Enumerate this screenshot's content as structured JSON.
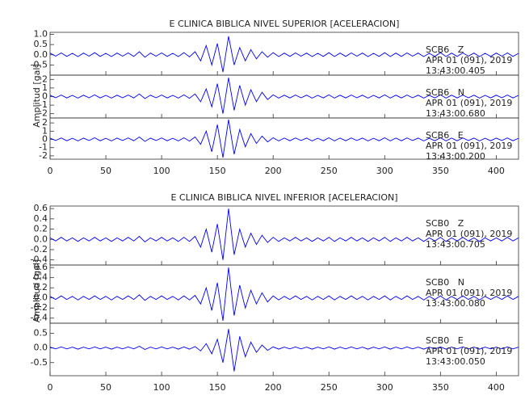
{
  "chart_data": [
    {
      "type": "line",
      "title": "E CLINICA BIBLICA NIVEL SUPERIOR [ACELERACION]",
      "ylabel": "Amplitud [gal]",
      "xlim": [
        0,
        420
      ],
      "xticks": [
        0,
        50,
        100,
        150,
        200,
        250,
        300,
        350,
        400
      ],
      "x": [
        0,
        5,
        10,
        15,
        20,
        25,
        30,
        35,
        40,
        45,
        50,
        55,
        60,
        65,
        70,
        75,
        80,
        85,
        90,
        95,
        100,
        105,
        110,
        115,
        120,
        125,
        130,
        135,
        140,
        145,
        150,
        155,
        160,
        165,
        170,
        175,
        180,
        185,
        190,
        195,
        200,
        205,
        210,
        215,
        220,
        225,
        230,
        235,
        240,
        245,
        250,
        255,
        260,
        265,
        270,
        275,
        280,
        285,
        290,
        295,
        300,
        305,
        310,
        315,
        320,
        325,
        330,
        335,
        340,
        345,
        350,
        355,
        360,
        365,
        370,
        375,
        380,
        385,
        390,
        395,
        400,
        405,
        410,
        415,
        420
      ],
      "panels": [
        {
          "label": "SCB6   Z",
          "date": "APR 01 (091), 2019",
          "time": "13:43:00.405",
          "ylim": [
            -1,
            1.1
          ],
          "yticks": [
            {
              "value": 1,
              "label": "1.0"
            },
            0.5,
            {
              "value": 0,
              "label": "0.0"
            },
            -0.5
          ],
          "series": [
            {
              "color": "#0000ff",
              "values": [
                0.08,
                -0.07,
                0.09,
                -0.08,
                0.07,
                -0.09,
                0.08,
                -0.07,
                0.1,
                -0.08,
                0.07,
                -0.09,
                0.08,
                -0.07,
                0.09,
                -0.08,
                0.15,
                -0.12,
                0.08,
                -0.07,
                0.09,
                -0.08,
                0.07,
                -0.09,
                0.1,
                -0.1,
                0.15,
                -0.3,
                0.45,
                -0.5,
                0.55,
                -0.85,
                0.9,
                -0.5,
                0.35,
                -0.3,
                0.25,
                -0.2,
                0.15,
                -0.12,
                0.1,
                -0.09,
                0.08,
                -0.08,
                0.09,
                -0.07,
                0.08,
                -0.09,
                0.07,
                -0.08,
                0.1,
                -0.09,
                0.08,
                -0.08,
                0.09,
                -0.07,
                0.08,
                -0.09,
                0.07,
                -0.08,
                0.1,
                -0.09,
                0.08,
                -0.08,
                0.09,
                -0.07,
                0.08,
                -0.09,
                0.07,
                -0.08,
                0.1,
                -0.09,
                0.08,
                -0.08,
                0.09,
                -0.07,
                0.08,
                -0.09,
                0.07,
                -0.08,
                0.08,
                -0.07,
                0.09,
                -0.08,
                0.07
              ]
            }
          ]
        },
        {
          "label": "SCB6   N",
          "date": "APR 01 (091), 2019",
          "time": "13:43:00.680",
          "ylim": [
            -2.5,
            2.5
          ],
          "yticks": [
            2,
            1,
            0,
            -1,
            -2
          ],
          "series": [
            {
              "color": "#0000ff",
              "values": [
                0.16,
                -0.14,
                0.18,
                -0.16,
                0.14,
                -0.18,
                0.16,
                -0.14,
                0.2,
                -0.16,
                0.14,
                -0.18,
                0.16,
                -0.14,
                0.18,
                -0.16,
                0.3,
                -0.24,
                0.16,
                -0.14,
                0.18,
                -0.16,
                0.14,
                -0.18,
                0.2,
                -0.2,
                0.3,
                -0.6,
                0.9,
                -1.2,
                1.5,
                -2.0,
                2.2,
                -1.6,
                1.3,
                -1.0,
                0.8,
                -0.6,
                0.5,
                -0.35,
                0.2,
                -0.18,
                0.16,
                -0.16,
                0.18,
                -0.14,
                0.16,
                -0.18,
                0.14,
                -0.16,
                0.2,
                -0.18,
                0.16,
                -0.16,
                0.18,
                -0.14,
                0.16,
                -0.18,
                0.14,
                -0.16,
                0.2,
                -0.18,
                0.16,
                -0.16,
                0.18,
                -0.14,
                0.16,
                -0.18,
                0.14,
                -0.16,
                0.2,
                -0.18,
                0.16,
                -0.16,
                0.18,
                -0.14,
                0.16,
                -0.18,
                0.14,
                -0.16,
                0.16,
                -0.14,
                0.18,
                -0.16,
                0.14
              ]
            }
          ]
        },
        {
          "label": "SCB6   E",
          "date": "APR 01 (091), 2019",
          "time": "13:43:00.200",
          "ylim": [
            -2.4,
            2.6
          ],
          "yticks": [
            2,
            1,
            0,
            -1,
            -2
          ],
          "series": [
            {
              "color": "#0000ff",
              "values": [
                0.16,
                -0.14,
                0.18,
                -0.16,
                0.14,
                -0.18,
                0.16,
                -0.14,
                0.2,
                -0.16,
                0.14,
                -0.18,
                0.16,
                -0.14,
                0.18,
                -0.16,
                0.3,
                -0.24,
                0.16,
                -0.14,
                0.18,
                -0.16,
                0.14,
                -0.18,
                0.2,
                -0.2,
                0.3,
                -0.6,
                1.0,
                -1.5,
                1.8,
                -2.2,
                2.4,
                -1.8,
                1.2,
                -0.9,
                0.7,
                -0.5,
                0.4,
                -0.3,
                0.2,
                -0.18,
                0.16,
                -0.16,
                0.18,
                -0.14,
                0.16,
                -0.18,
                0.14,
                -0.16,
                0.2,
                -0.18,
                0.16,
                -0.16,
                0.18,
                -0.14,
                0.16,
                -0.18,
                0.14,
                -0.16,
                0.2,
                -0.18,
                0.16,
                -0.16,
                0.18,
                -0.14,
                0.16,
                -0.18,
                0.14,
                -0.16,
                0.2,
                -0.18,
                0.16,
                -0.16,
                0.18,
                -0.14,
                0.16,
                -0.18,
                0.14,
                -0.16,
                0.16,
                -0.14,
                0.18,
                -0.16,
                0.14
              ]
            }
          ]
        }
      ]
    },
    {
      "type": "line",
      "title": "E CLINICA BIBLICA NIVEL INFERIOR [ACELERACION]",
      "ylabel": "Amplitud [gal]",
      "xlim": [
        0,
        420
      ],
      "xticks": [
        0,
        50,
        100,
        150,
        200,
        250,
        300,
        350,
        400
      ],
      "x": [
        0,
        5,
        10,
        15,
        20,
        25,
        30,
        35,
        40,
        45,
        50,
        55,
        60,
        65,
        70,
        75,
        80,
        85,
        90,
        95,
        100,
        105,
        110,
        115,
        120,
        125,
        130,
        135,
        140,
        145,
        150,
        155,
        160,
        165,
        170,
        175,
        180,
        185,
        190,
        195,
        200,
        205,
        210,
        215,
        220,
        225,
        230,
        235,
        240,
        245,
        250,
        255,
        260,
        265,
        270,
        275,
        280,
        285,
        290,
        295,
        300,
        305,
        310,
        315,
        320,
        325,
        330,
        335,
        340,
        345,
        350,
        355,
        360,
        365,
        370,
        375,
        380,
        385,
        390,
        395,
        400,
        405,
        410,
        415,
        420
      ],
      "panels": [
        {
          "label": "SCB0   Z",
          "date": "APR 01 (091), 2019",
          "time": "13:43:00.705",
          "ylim": [
            -0.5,
            0.65
          ],
          "yticks": [
            0.6,
            0.4,
            0.2,
            {
              "value": 0,
              "label": "0.0"
            },
            -0.2,
            -0.4
          ],
          "series": [
            {
              "color": "#0000ff",
              "values": [
                0.03,
                -0.03,
                0.04,
                -0.03,
                0.03,
                -0.04,
                0.03,
                -0.03,
                0.04,
                -0.03,
                0.03,
                -0.04,
                0.03,
                -0.03,
                0.04,
                -0.03,
                0.06,
                -0.05,
                0.03,
                -0.03,
                0.04,
                -0.03,
                0.03,
                -0.04,
                0.04,
                -0.04,
                0.06,
                -0.15,
                0.2,
                -0.25,
                0.3,
                -0.4,
                0.6,
                -0.3,
                0.2,
                -0.15,
                0.12,
                -0.1,
                0.08,
                -0.06,
                0.04,
                -0.04,
                0.03,
                -0.03,
                0.04,
                -0.03,
                0.03,
                -0.04,
                0.03,
                -0.03,
                0.04,
                -0.04,
                0.03,
                -0.03,
                0.04,
                -0.03,
                0.03,
                -0.04,
                0.03,
                -0.03,
                0.04,
                -0.04,
                0.03,
                -0.03,
                0.04,
                -0.03,
                0.03,
                -0.04,
                0.03,
                -0.03,
                0.04,
                -0.04,
                0.03,
                -0.03,
                0.04,
                -0.03,
                0.03,
                -0.04,
                0.03,
                -0.03,
                0.03,
                -0.03,
                0.04,
                -0.03,
                0.03
              ]
            }
          ]
        },
        {
          "label": "SCB0   N",
          "date": "APR 01 (091), 2019",
          "time": "13:43:00.080",
          "ylim": [
            -0.5,
            0.65
          ],
          "yticks": [
            0.6,
            0.4,
            0.2,
            {
              "value": 0,
              "label": "0.0"
            },
            -0.2,
            -0.4
          ],
          "series": [
            {
              "color": "#0000ff",
              "values": [
                0.03,
                -0.03,
                0.04,
                -0.03,
                0.03,
                -0.04,
                0.03,
                -0.03,
                0.04,
                -0.03,
                0.03,
                -0.04,
                0.03,
                -0.03,
                0.04,
                -0.03,
                0.06,
                -0.05,
                0.03,
                -0.03,
                0.04,
                -0.03,
                0.03,
                -0.04,
                0.04,
                -0.04,
                0.05,
                -0.12,
                0.2,
                -0.25,
                0.3,
                -0.45,
                0.6,
                -0.35,
                0.25,
                -0.2,
                0.15,
                -0.12,
                0.1,
                -0.08,
                0.04,
                -0.04,
                0.03,
                -0.03,
                0.04,
                -0.03,
                0.03,
                -0.04,
                0.03,
                -0.03,
                0.04,
                -0.04,
                0.03,
                -0.03,
                0.04,
                -0.03,
                0.03,
                -0.04,
                0.03,
                -0.03,
                0.04,
                -0.04,
                0.03,
                -0.03,
                0.04,
                -0.03,
                0.03,
                -0.04,
                0.03,
                -0.03,
                0.04,
                -0.04,
                0.03,
                -0.03,
                0.04,
                -0.03,
                0.03,
                -0.04,
                0.03,
                -0.03,
                0.03,
                -0.03,
                0.04,
                -0.03,
                0.03
              ]
            }
          ]
        },
        {
          "label": "SCB0   E",
          "date": "APR 01 (091), 2019",
          "time": "13:43:00.050",
          "ylim": [
            -0.95,
            0.85
          ],
          "yticks": [
            0.5,
            {
              "value": 0,
              "label": "0.0"
            },
            -0.5
          ],
          "series": [
            {
              "color": "#0000ff",
              "values": [
                0.03,
                -0.03,
                0.04,
                -0.03,
                0.03,
                -0.04,
                0.03,
                -0.03,
                0.04,
                -0.03,
                0.03,
                -0.04,
                0.03,
                -0.03,
                0.04,
                -0.03,
                0.06,
                -0.05,
                0.03,
                -0.03,
                0.04,
                -0.03,
                0.03,
                -0.04,
                0.04,
                -0.04,
                0.05,
                -0.1,
                0.15,
                -0.2,
                0.3,
                -0.5,
                0.65,
                -0.8,
                0.4,
                -0.3,
                0.2,
                -0.15,
                0.1,
                -0.08,
                0.04,
                -0.04,
                0.03,
                -0.03,
                0.04,
                -0.03,
                0.03,
                -0.04,
                0.03,
                -0.03,
                0.04,
                -0.04,
                0.03,
                -0.03,
                0.04,
                -0.03,
                0.03,
                -0.04,
                0.03,
                -0.03,
                0.04,
                -0.04,
                0.03,
                -0.03,
                0.04,
                -0.03,
                0.03,
                -0.04,
                0.03,
                -0.03,
                0.04,
                -0.04,
                0.03,
                -0.03,
                0.04,
                -0.03,
                0.03,
                -0.04,
                0.03,
                -0.03,
                0.03,
                -0.03,
                0.04,
                -0.03,
                0.03
              ]
            }
          ]
        }
      ]
    }
  ]
}
